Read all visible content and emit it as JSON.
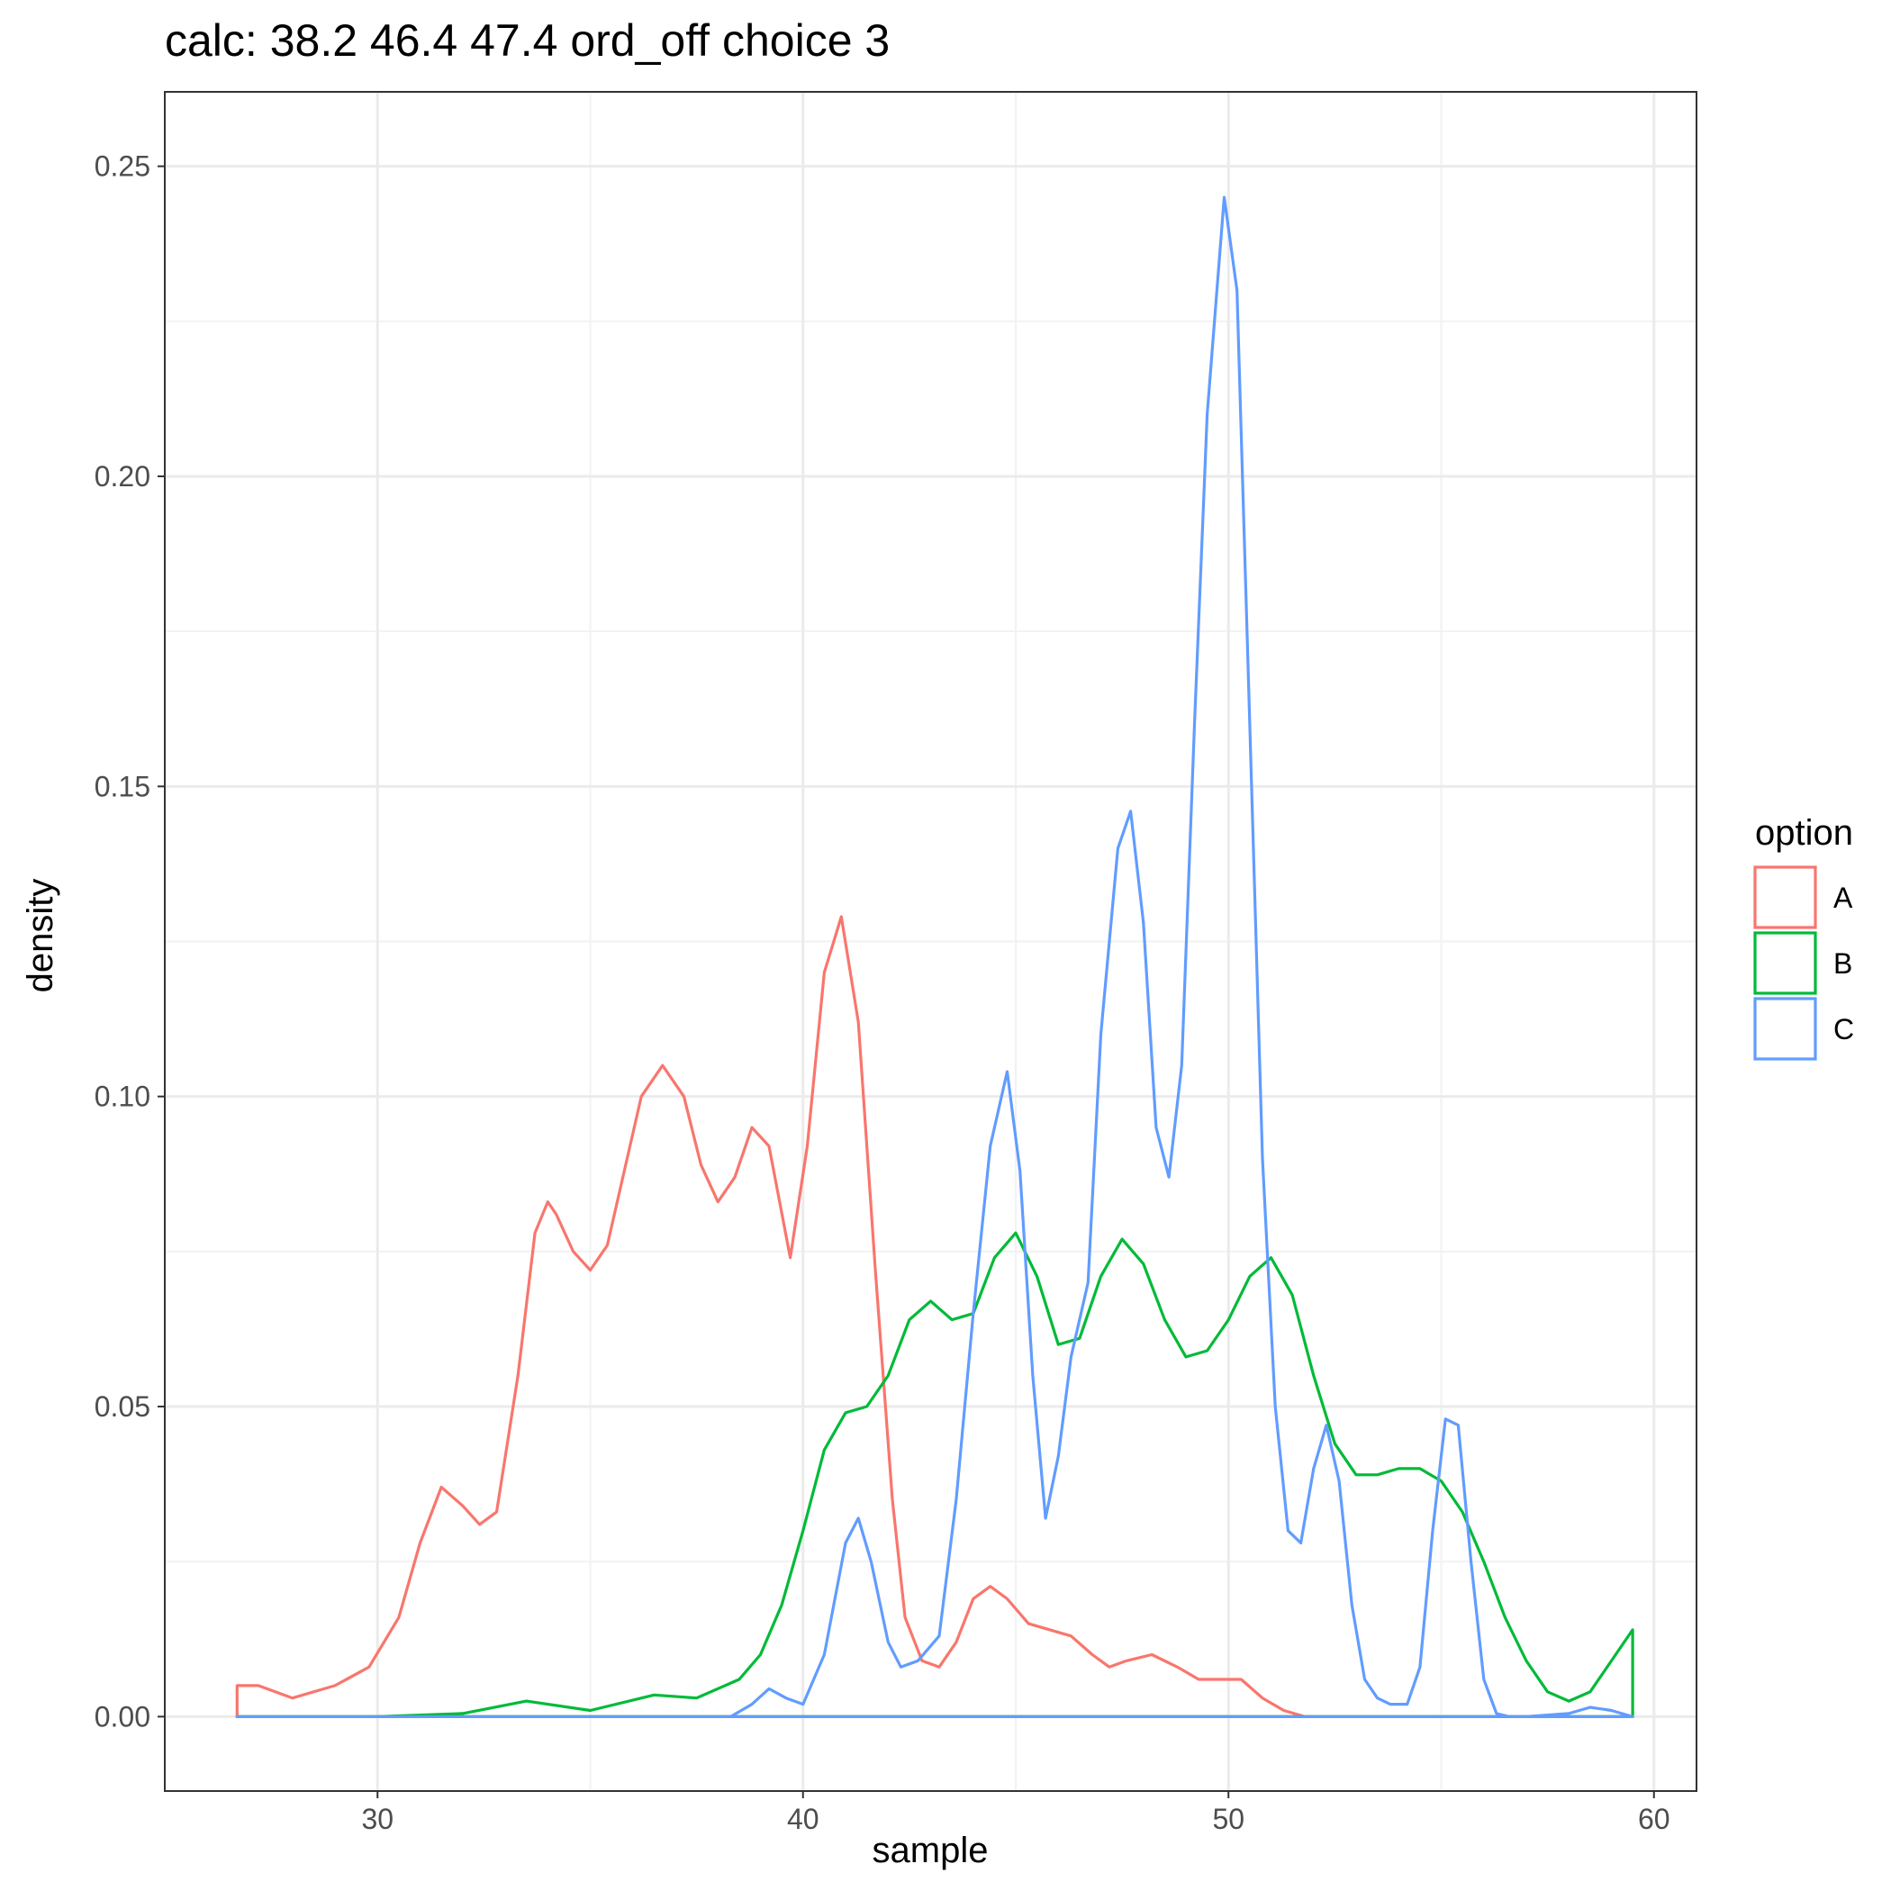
{
  "chart_data": {
    "type": "line",
    "title": "calc: 38.2 46.4 47.4 ord_off choice 3",
    "xlabel": "sample",
    "ylabel": "density",
    "xlim": [
      25,
      61
    ],
    "ylim": [
      -0.012,
      0.262
    ],
    "x_ticks": [
      30,
      40,
      50,
      60
    ],
    "x_tick_labels": [
      "30",
      "40",
      "50",
      "60"
    ],
    "y_ticks": [
      0.0,
      0.05,
      0.1,
      0.15,
      0.2,
      0.25
    ],
    "y_tick_labels": [
      "0.00",
      "0.05",
      "0.10",
      "0.15",
      "0.20",
      "0.25"
    ],
    "grid": true,
    "legend": {
      "title": "option",
      "position": "right"
    },
    "series": [
      {
        "name": "A",
        "color": "#F8766D",
        "x": [
          26.7,
          27.2,
          28.0,
          29.0,
          29.8,
          30.5,
          31.0,
          31.5,
          32.0,
          32.4,
          32.8,
          33.3,
          33.7,
          34.0,
          34.2,
          34.6,
          35.0,
          35.4,
          35.8,
          36.2,
          36.7,
          37.2,
          37.6,
          38.0,
          38.4,
          38.8,
          39.2,
          39.7,
          40.1,
          40.5,
          40.9,
          41.3,
          41.7,
          42.1,
          42.4,
          42.8,
          43.2,
          43.6,
          44.0,
          44.4,
          44.8,
          45.3,
          45.8,
          46.3,
          46.8,
          47.2,
          47.6,
          48.2,
          48.8,
          49.3,
          49.8,
          50.3,
          50.8,
          51.3,
          51.8,
          52.3,
          53.0,
          54.0,
          56.0,
          58.0,
          59.5
        ],
        "y": [
          0.005,
          0.005,
          0.003,
          0.005,
          0.008,
          0.016,
          0.028,
          0.037,
          0.034,
          0.031,
          0.033,
          0.055,
          0.078,
          0.083,
          0.081,
          0.075,
          0.072,
          0.076,
          0.088,
          0.1,
          0.105,
          0.1,
          0.089,
          0.083,
          0.087,
          0.095,
          0.092,
          0.074,
          0.092,
          0.12,
          0.129,
          0.112,
          0.072,
          0.035,
          0.016,
          0.009,
          0.008,
          0.012,
          0.019,
          0.021,
          0.019,
          0.015,
          0.014,
          0.013,
          0.01,
          0.008,
          0.009,
          0.01,
          0.008,
          0.006,
          0.006,
          0.006,
          0.003,
          0.001,
          0.0,
          0.0,
          0.0,
          0.0,
          0.0,
          0.0,
          0.0
        ]
      },
      {
        "name": "B",
        "color": "#00BA38",
        "x": [
          26.7,
          30.0,
          32.0,
          33.5,
          35.0,
          36.5,
          37.5,
          38.5,
          39.0,
          39.5,
          40.0,
          40.5,
          41.0,
          41.5,
          42.0,
          42.5,
          43.0,
          43.5,
          44.0,
          44.5,
          45.0,
          45.5,
          46.0,
          46.5,
          47.0,
          47.5,
          48.0,
          48.5,
          49.0,
          49.5,
          50.0,
          50.5,
          51.0,
          51.5,
          52.0,
          52.5,
          53.0,
          53.5,
          54.0,
          54.5,
          55.0,
          55.5,
          56.0,
          56.5,
          57.0,
          57.5,
          58.0,
          58.5,
          59.0,
          59.5
        ],
        "y": [
          0.0,
          0.0,
          0.0005,
          0.0025,
          0.001,
          0.0035,
          0.003,
          0.006,
          0.01,
          0.018,
          0.03,
          0.043,
          0.049,
          0.05,
          0.055,
          0.064,
          0.067,
          0.064,
          0.065,
          0.074,
          0.078,
          0.071,
          0.06,
          0.061,
          0.071,
          0.077,
          0.073,
          0.064,
          0.058,
          0.059,
          0.064,
          0.071,
          0.074,
          0.068,
          0.055,
          0.044,
          0.039,
          0.039,
          0.04,
          0.04,
          0.038,
          0.033,
          0.025,
          0.016,
          0.009,
          0.004,
          0.0025,
          0.004,
          0.009,
          0.014
        ]
      },
      {
        "name": "C",
        "color": "#619CFF",
        "x": [
          26.7,
          38.3,
          38.8,
          39.2,
          39.6,
          40.0,
          40.5,
          41.0,
          41.3,
          41.6,
          42.0,
          42.3,
          42.7,
          43.2,
          43.6,
          44.0,
          44.4,
          44.8,
          45.1,
          45.4,
          45.7,
          46.0,
          46.3,
          46.7,
          47.0,
          47.4,
          47.7,
          48.0,
          48.3,
          48.6,
          48.9,
          49.2,
          49.5,
          49.9,
          50.2,
          50.5,
          50.8,
          51.1,
          51.4,
          51.7,
          52.0,
          52.3,
          52.6,
          52.9,
          53.2,
          53.5,
          53.8,
          54.2,
          54.5,
          54.8,
          55.1,
          55.4,
          55.7,
          56.0,
          56.3,
          56.6,
          57.0,
          58.0,
          58.5,
          59.0,
          59.5
        ],
        "y": [
          0.0,
          0.0,
          0.002,
          0.0045,
          0.003,
          0.002,
          0.01,
          0.028,
          0.032,
          0.025,
          0.012,
          0.008,
          0.009,
          0.013,
          0.035,
          0.065,
          0.092,
          0.104,
          0.088,
          0.055,
          0.032,
          0.042,
          0.058,
          0.07,
          0.11,
          0.14,
          0.146,
          0.128,
          0.095,
          0.087,
          0.105,
          0.16,
          0.21,
          0.245,
          0.23,
          0.16,
          0.09,
          0.05,
          0.03,
          0.028,
          0.04,
          0.047,
          0.038,
          0.018,
          0.006,
          0.003,
          0.002,
          0.002,
          0.008,
          0.03,
          0.048,
          0.047,
          0.025,
          0.006,
          0.0005,
          0.0,
          0.0,
          0.0005,
          0.0015,
          0.001,
          0.0
        ]
      }
    ]
  }
}
